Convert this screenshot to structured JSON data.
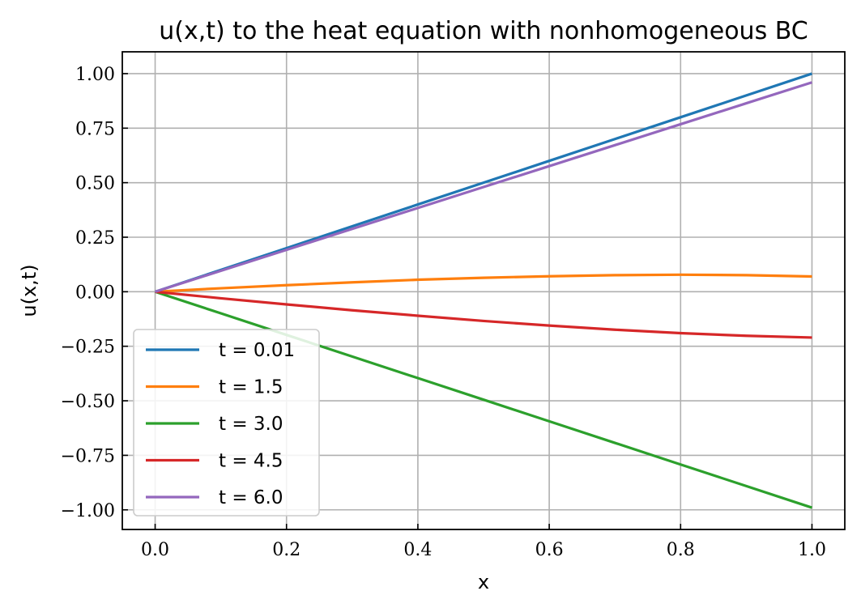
{
  "chart_data": {
    "type": "line",
    "title": "u(x,t) to the heat equation with nonhomogeneous BC",
    "xlabel": "x",
    "ylabel": "u(x,t)",
    "xlim": [
      -0.05,
      1.05
    ],
    "ylim": [
      -1.09,
      1.1
    ],
    "xticks": [
      0.0,
      0.2,
      0.4,
      0.6,
      0.8,
      1.0
    ],
    "xtick_labels": [
      "0.0",
      "0.2",
      "0.4",
      "0.6",
      "0.8",
      "1.0"
    ],
    "yticks": [
      1.0,
      0.75,
      0.5,
      0.25,
      0.0,
      -0.25,
      -0.5,
      -0.75,
      -1.0
    ],
    "ytick_labels": [
      "1.00",
      "0.75",
      "0.50",
      "0.25",
      "0.00",
      "−0.25",
      "−0.50",
      "−0.75",
      "−1.00"
    ],
    "grid": true,
    "legend_position": "lower-left",
    "x": [
      0.0,
      0.1,
      0.2,
      0.3,
      0.4,
      0.5,
      0.6,
      0.7,
      0.8,
      0.9,
      1.0
    ],
    "series": [
      {
        "name": "t = 0.01",
        "color": "#1f77b4",
        "values": [
          0.0,
          0.1,
          0.2,
          0.3,
          0.4,
          0.5,
          0.6,
          0.7,
          0.8,
          0.9,
          1.0
        ]
      },
      {
        "name": "t = 1.5",
        "color": "#ff7f0e",
        "values": [
          0.0,
          0.016,
          0.03,
          0.043,
          0.055,
          0.064,
          0.071,
          0.076,
          0.078,
          0.076,
          0.07
        ]
      },
      {
        "name": "t = 3.0",
        "color": "#2ca02c",
        "values": [
          0.0,
          -0.099,
          -0.198,
          -0.297,
          -0.396,
          -0.495,
          -0.594,
          -0.693,
          -0.792,
          -0.891,
          -0.99
        ]
      },
      {
        "name": "t = 4.5",
        "color": "#d62728",
        "values": [
          0.0,
          -0.03,
          -0.058,
          -0.085,
          -0.11,
          -0.134,
          -0.155,
          -0.174,
          -0.19,
          -0.202,
          -0.21
        ]
      },
      {
        "name": "t = 6.0",
        "color": "#9467bd",
        "values": [
          0.0,
          0.096,
          0.192,
          0.288,
          0.384,
          0.48,
          0.576,
          0.672,
          0.768,
          0.864,
          0.96
        ]
      }
    ]
  }
}
